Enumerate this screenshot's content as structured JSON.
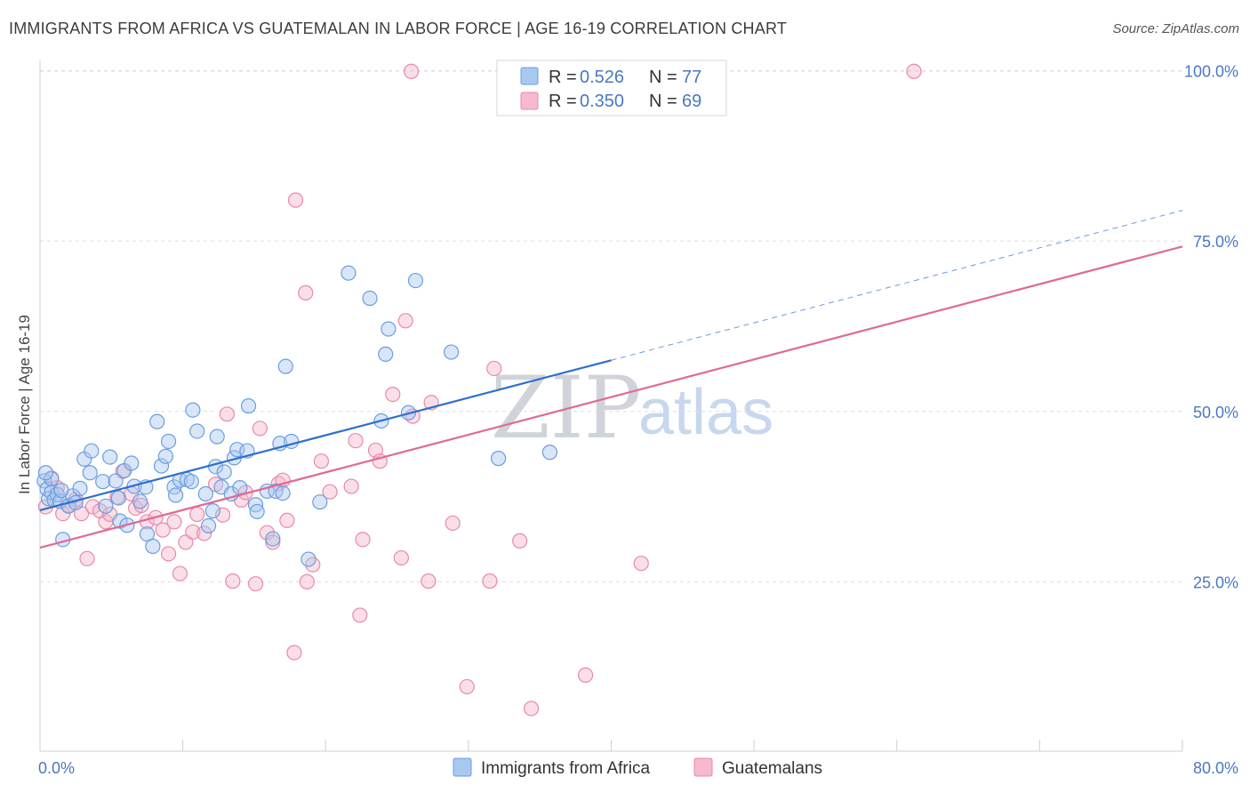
{
  "title": "IMMIGRANTS FROM AFRICA VS GUATEMALAN IN LABOR FORCE | AGE 16-19 CORRELATION CHART",
  "source": "Source: ZipAtlas.com",
  "watermark": {
    "zip": "ZIP",
    "atlas": "atlas"
  },
  "colors": {
    "blue_fill": "#a9c8f0",
    "blue_stroke": "#6b9de0",
    "blue_line": "#2d6fcf",
    "pink_fill": "#f6b9cd",
    "pink_stroke": "#e889a8",
    "pink_line": "#e06a93",
    "axis_label": "#4a78c2",
    "grid": "#dddddd"
  },
  "legend": [
    {
      "r_label": "R = ",
      "r_value": "0.526",
      "n_label": "N = ",
      "n_value": "77"
    },
    {
      "r_label": "R = ",
      "r_value": "0.350",
      "n_label": "N = ",
      "n_value": "69"
    }
  ],
  "chart_data": {
    "type": "scatter",
    "title": "IMMIGRANTS FROM AFRICA VS GUATEMALAN IN LABOR FORCE | AGE 16-19 CORRELATION CHART",
    "xlabel": "",
    "ylabel": "In Labor Force | Age 16-19",
    "xlim": [
      0,
      80
    ],
    "ylim": [
      0,
      102
    ],
    "x_tick_labels": [
      "0.0%",
      "80.0%"
    ],
    "y_tick_labels": [
      "25.0%",
      "50.0%",
      "75.0%",
      "100.0%"
    ],
    "y_ticks": [
      25,
      50,
      75,
      100
    ],
    "grid": true,
    "series": [
      {
        "name": "Immigrants from Africa",
        "color": "blue",
        "r": 0.526,
        "n": 77,
        "trend": {
          "x0": 0,
          "y0": 35.5,
          "x1": 40,
          "y1": 57.5,
          "dashed_to_x": 80,
          "dashed_to_y": 79.5
        },
        "points": [
          [
            0.3,
            39.8
          ],
          [
            0.5,
            38.6
          ],
          [
            0.6,
            37.2
          ],
          [
            0.8,
            38.1
          ],
          [
            1.0,
            37.0
          ],
          [
            1.2,
            37.8
          ],
          [
            1.4,
            36.8
          ],
          [
            1.5,
            38.4
          ],
          [
            1.6,
            31.2
          ],
          [
            2.0,
            36.1
          ],
          [
            2.3,
            37.6
          ],
          [
            2.5,
            36.6
          ],
          [
            2.8,
            38.7
          ],
          [
            3.1,
            43.0
          ],
          [
            3.5,
            41.0
          ],
          [
            3.6,
            44.2
          ],
          [
            4.4,
            39.7
          ],
          [
            4.6,
            36.1
          ],
          [
            4.9,
            43.3
          ],
          [
            5.3,
            39.8
          ],
          [
            5.5,
            37.3
          ],
          [
            5.6,
            33.9
          ],
          [
            5.9,
            41.3
          ],
          [
            6.1,
            33.3
          ],
          [
            6.4,
            42.4
          ],
          [
            6.6,
            39.0
          ],
          [
            7.0,
            36.8
          ],
          [
            7.4,
            38.9
          ],
          [
            7.5,
            32.0
          ],
          [
            7.9,
            30.2
          ],
          [
            8.2,
            48.5
          ],
          [
            8.5,
            42.0
          ],
          [
            8.8,
            43.4
          ],
          [
            9.0,
            45.6
          ],
          [
            9.4,
            38.9
          ],
          [
            9.5,
            37.7
          ],
          [
            9.8,
            39.9
          ],
          [
            10.3,
            40.0
          ],
          [
            10.6,
            39.7
          ],
          [
            10.7,
            50.2
          ],
          [
            11.0,
            47.1
          ],
          [
            11.6,
            37.9
          ],
          [
            11.8,
            33.2
          ],
          [
            12.1,
            35.4
          ],
          [
            12.3,
            41.9
          ],
          [
            12.4,
            46.3
          ],
          [
            12.7,
            38.9
          ],
          [
            12.9,
            41.1
          ],
          [
            13.4,
            37.9
          ],
          [
            13.6,
            43.2
          ],
          [
            13.8,
            44.4
          ],
          [
            14.0,
            38.8
          ],
          [
            14.6,
            50.8
          ],
          [
            14.5,
            44.2
          ],
          [
            15.1,
            36.3
          ],
          [
            15.2,
            35.3
          ],
          [
            15.9,
            38.3
          ],
          [
            16.3,
            31.3
          ],
          [
            16.5,
            38.3
          ],
          [
            16.8,
            45.3
          ],
          [
            17.0,
            38.0
          ],
          [
            17.2,
            56.6
          ],
          [
            17.6,
            45.6
          ],
          [
            18.8,
            28.3
          ],
          [
            19.6,
            36.7
          ],
          [
            21.6,
            70.3
          ],
          [
            23.1,
            66.6
          ],
          [
            23.9,
            48.6
          ],
          [
            24.2,
            58.4
          ],
          [
            24.4,
            62.1
          ],
          [
            25.8,
            49.8
          ],
          [
            26.3,
            69.2
          ],
          [
            28.8,
            58.7
          ],
          [
            32.1,
            43.1
          ],
          [
            35.7,
            44.0
          ],
          [
            0.8,
            40.1
          ],
          [
            0.4,
            41.0
          ]
        ]
      },
      {
        "name": "Guatemalans",
        "color": "pink",
        "r": 0.35,
        "n": 69,
        "trend": {
          "x0": 0,
          "y0": 30.0,
          "x1": 80,
          "y1": 74.2
        },
        "points": [
          [
            0.4,
            36.0
          ],
          [
            0.8,
            40.2
          ],
          [
            1.2,
            38.8
          ],
          [
            1.6,
            35.0
          ],
          [
            2.0,
            36.2
          ],
          [
            2.5,
            37.1
          ],
          [
            2.9,
            35.0
          ],
          [
            3.3,
            28.4
          ],
          [
            3.7,
            36.0
          ],
          [
            4.2,
            35.4
          ],
          [
            4.6,
            33.8
          ],
          [
            4.9,
            34.9
          ],
          [
            5.4,
            37.4
          ],
          [
            5.8,
            41.2
          ],
          [
            6.4,
            37.9
          ],
          [
            6.7,
            35.8
          ],
          [
            7.1,
            36.2
          ],
          [
            7.5,
            33.8
          ],
          [
            8.1,
            34.4
          ],
          [
            8.6,
            32.6
          ],
          [
            9.0,
            29.1
          ],
          [
            9.4,
            33.8
          ],
          [
            9.8,
            26.2
          ],
          [
            10.2,
            30.8
          ],
          [
            10.7,
            32.3
          ],
          [
            11.0,
            34.9
          ],
          [
            11.5,
            32.1
          ],
          [
            12.3,
            39.3
          ],
          [
            12.8,
            34.8
          ],
          [
            13.1,
            49.6
          ],
          [
            13.5,
            25.1
          ],
          [
            14.1,
            37.0
          ],
          [
            14.4,
            38.1
          ],
          [
            15.1,
            24.7
          ],
          [
            15.4,
            47.5
          ],
          [
            15.9,
            32.2
          ],
          [
            16.3,
            30.8
          ],
          [
            16.7,
            39.4
          ],
          [
            17.0,
            39.9
          ],
          [
            17.3,
            34.0
          ],
          [
            17.8,
            14.6
          ],
          [
            17.9,
            81.0
          ],
          [
            18.6,
            67.4
          ],
          [
            18.7,
            25.0
          ],
          [
            19.1,
            27.5
          ],
          [
            19.7,
            42.7
          ],
          [
            20.3,
            38.2
          ],
          [
            21.8,
            39.0
          ],
          [
            22.1,
            45.7
          ],
          [
            22.4,
            20.1
          ],
          [
            22.6,
            31.2
          ],
          [
            23.5,
            44.3
          ],
          [
            23.8,
            42.7
          ],
          [
            24.7,
            52.5
          ],
          [
            25.3,
            28.5
          ],
          [
            25.6,
            63.3
          ],
          [
            26.1,
            49.3
          ],
          [
            27.2,
            25.1
          ],
          [
            27.4,
            51.3
          ],
          [
            28.9,
            33.6
          ],
          [
            29.9,
            9.6
          ],
          [
            31.5,
            25.1
          ],
          [
            31.8,
            56.3
          ],
          [
            33.6,
            31.0
          ],
          [
            34.4,
            6.4
          ],
          [
            38.2,
            11.3
          ],
          [
            42.1,
            27.7
          ],
          [
            26.0,
            99.9
          ],
          [
            61.2,
            99.9
          ]
        ]
      }
    ]
  }
}
